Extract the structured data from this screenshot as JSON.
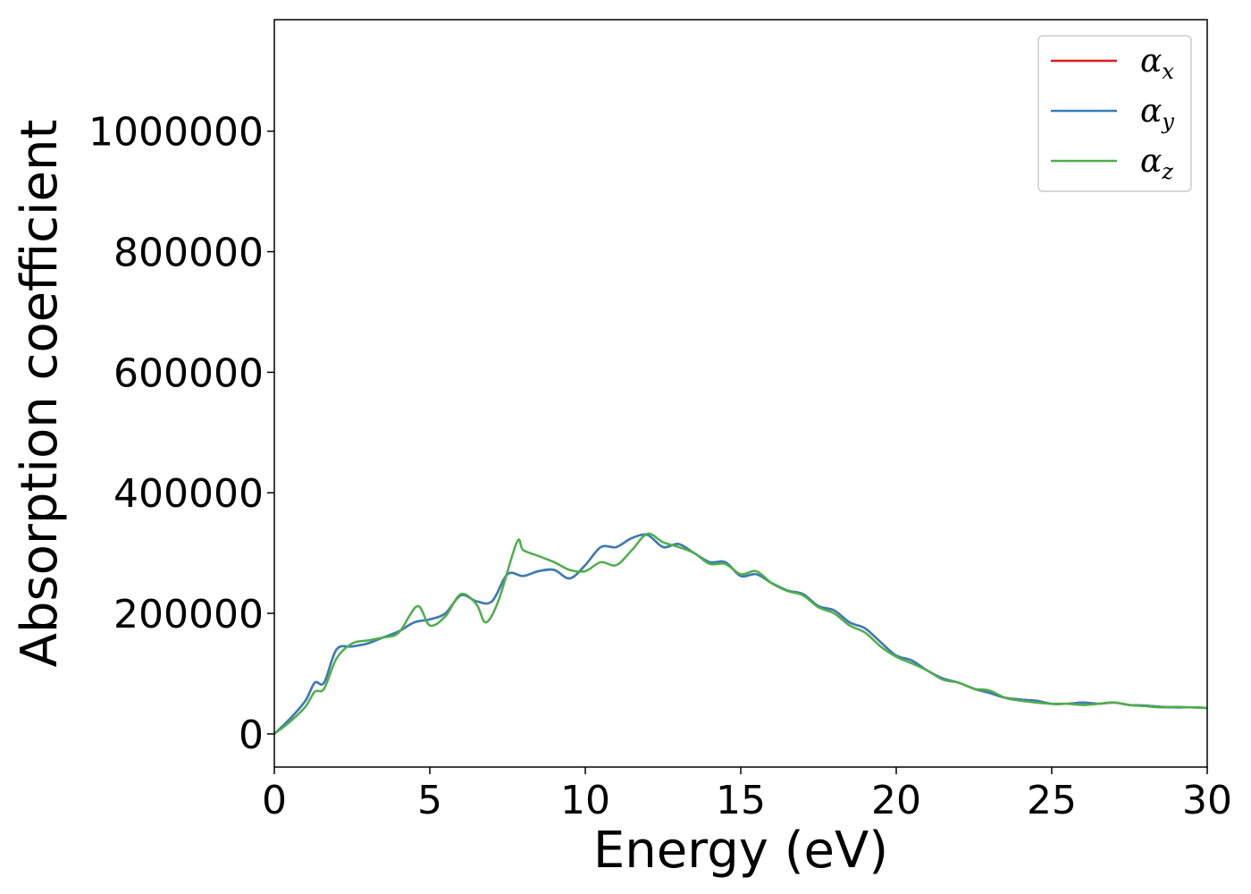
{
  "chart_data": {
    "type": "line",
    "title": "",
    "xlabel": "Energy (eV)",
    "ylabel": "Absorption coefficient",
    "xlim": [
      0,
      30
    ],
    "ylim": [
      -55000,
      1185000
    ],
    "xticks": [
      0,
      5,
      10,
      15,
      20,
      25,
      30
    ],
    "xtick_labels": [
      "0",
      "5",
      "10",
      "15",
      "20",
      "25",
      "30"
    ],
    "yticks": [
      0,
      200000,
      400000,
      600000,
      800000,
      1000000
    ],
    "ytick_labels": [
      "0",
      "200000",
      "400000",
      "600000",
      "800000",
      "1000000"
    ],
    "grid": false,
    "legend_position": "top-right",
    "series": [
      {
        "name": "αx",
        "symbol": "α",
        "subscript": "x",
        "color": "#e41a1c",
        "x": [
          0,
          0.5,
          1,
          1.3,
          1.6,
          2,
          2.5,
          3,
          3.5,
          4,
          4.5,
          5,
          5.5,
          6,
          6.5,
          7,
          7.5,
          8,
          8.5,
          9,
          9.5,
          10,
          10.5,
          11,
          11.5,
          12,
          12.5,
          13,
          13.5,
          14,
          14.5,
          15,
          15.5,
          16,
          16.5,
          17,
          17.5,
          18,
          18.5,
          19,
          19.5,
          20,
          20.5,
          21,
          21.5,
          22,
          22.5,
          23,
          23.5,
          24,
          24.5,
          25,
          25.5,
          26,
          26.5,
          27,
          27.5,
          28,
          28.5,
          29,
          29.5,
          30
        ],
        "y": [
          0,
          25000,
          55000,
          85000,
          85000,
          140000,
          145000,
          150000,
          160000,
          170000,
          185000,
          190000,
          200000,
          230000,
          220000,
          220000,
          265000,
          262000,
          270000,
          272000,
          258000,
          280000,
          310000,
          310000,
          325000,
          330000,
          310000,
          315000,
          300000,
          285000,
          285000,
          262000,
          265000,
          250000,
          238000,
          232000,
          212000,
          205000,
          185000,
          175000,
          152000,
          130000,
          122000,
          105000,
          92000,
          85000,
          75000,
          68000,
          60000,
          57000,
          55000,
          50000,
          50000,
          52000,
          50000,
          52000,
          48000,
          47000,
          45000,
          44000,
          44000,
          43000
        ]
      },
      {
        "name": "αy",
        "symbol": "α",
        "subscript": "y",
        "color": "#377eb8",
        "x": [
          0,
          0.5,
          1,
          1.3,
          1.6,
          2,
          2.5,
          3,
          3.5,
          4,
          4.5,
          5,
          5.5,
          6,
          6.5,
          7,
          7.5,
          8,
          8.5,
          9,
          9.5,
          10,
          10.5,
          11,
          11.5,
          12,
          12.5,
          13,
          13.5,
          14,
          14.5,
          15,
          15.5,
          16,
          16.5,
          17,
          17.5,
          18,
          18.5,
          19,
          19.5,
          20,
          20.5,
          21,
          21.5,
          22,
          22.5,
          23,
          23.5,
          24,
          24.5,
          25,
          25.5,
          26,
          26.5,
          27,
          27.5,
          28,
          28.5,
          29,
          29.5,
          30
        ],
        "y": [
          0,
          25000,
          55000,
          85000,
          85000,
          140000,
          145000,
          150000,
          160000,
          170000,
          185000,
          190000,
          200000,
          230000,
          220000,
          220000,
          265000,
          262000,
          270000,
          272000,
          258000,
          280000,
          310000,
          310000,
          325000,
          330000,
          310000,
          315000,
          300000,
          285000,
          285000,
          262000,
          265000,
          250000,
          238000,
          232000,
          212000,
          205000,
          185000,
          175000,
          152000,
          130000,
          122000,
          105000,
          92000,
          85000,
          75000,
          68000,
          60000,
          57000,
          55000,
          50000,
          50000,
          52000,
          50000,
          52000,
          48000,
          47000,
          45000,
          44000,
          44000,
          43000
        ]
      },
      {
        "name": "αz",
        "symbol": "α",
        "subscript": "z",
        "color": "#4daf4a",
        "x": [
          0,
          0.5,
          1,
          1.3,
          1.6,
          2,
          2.5,
          3,
          3.5,
          4,
          4.6,
          5,
          5.5,
          6,
          6.5,
          6.8,
          7.2,
          7.8,
          8,
          8.5,
          9,
          9.5,
          10,
          10.5,
          11,
          11.5,
          12,
          12.5,
          13,
          13.5,
          14,
          14.5,
          15,
          15.5,
          16,
          16.5,
          17,
          17.5,
          18,
          18.5,
          19,
          19.5,
          20,
          20.5,
          21,
          21.5,
          22,
          22.5,
          23,
          23.5,
          24,
          24.5,
          25,
          25.5,
          26,
          26.5,
          27,
          27.5,
          28,
          28.5,
          29,
          29.5,
          30
        ],
        "y": [
          0,
          20000,
          45000,
          70000,
          75000,
          125000,
          150000,
          155000,
          160000,
          168000,
          212000,
          180000,
          195000,
          232000,
          215000,
          185000,
          220000,
          318000,
          305000,
          295000,
          285000,
          272000,
          270000,
          285000,
          280000,
          305000,
          332000,
          318000,
          310000,
          300000,
          282000,
          282000,
          265000,
          270000,
          250000,
          237000,
          230000,
          210000,
          200000,
          180000,
          168000,
          145000,
          128000,
          117000,
          105000,
          90000,
          85000,
          75000,
          72000,
          60000,
          55000,
          52000,
          50000,
          50000,
          48000,
          50000,
          52000,
          48000,
          46000,
          44000,
          45000,
          44000,
          43000
        ]
      }
    ]
  }
}
